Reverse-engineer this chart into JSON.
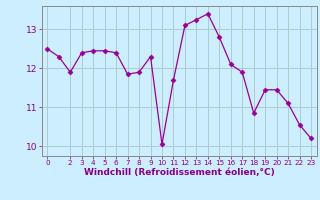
{
  "x": [
    0,
    1,
    2,
    3,
    4,
    5,
    6,
    7,
    8,
    9,
    10,
    11,
    12,
    13,
    14,
    15,
    16,
    17,
    18,
    19,
    20,
    21,
    22,
    23
  ],
  "y": [
    12.5,
    12.3,
    11.9,
    12.4,
    12.45,
    12.45,
    12.4,
    11.85,
    11.9,
    12.3,
    10.05,
    11.7,
    13.1,
    13.25,
    13.4,
    12.8,
    12.1,
    11.9,
    10.85,
    11.45,
    11.45,
    11.1,
    10.55,
    10.2
  ],
  "line_color": "#990099",
  "marker": "D",
  "markersize": 2.5,
  "linewidth": 0.9,
  "xlabel": "Windchill (Refroidissement éolien,°C)",
  "xlabel_fontsize": 6.5,
  "bg_color": "#cceeff",
  "grid_color": "#aacccc",
  "xlim": [
    -0.5,
    23.5
  ],
  "ylim": [
    9.75,
    13.6
  ],
  "yticks": [
    10,
    11,
    12,
    13
  ],
  "xticks": [
    0,
    2,
    3,
    4,
    5,
    6,
    7,
    8,
    9,
    10,
    11,
    12,
    13,
    14,
    15,
    16,
    17,
    18,
    19,
    20,
    21,
    22,
    23
  ],
  "ytick_fontsize": 6.5,
  "xtick_fontsize": 5.2,
  "tick_color": "#880088",
  "spine_color": "#888888"
}
